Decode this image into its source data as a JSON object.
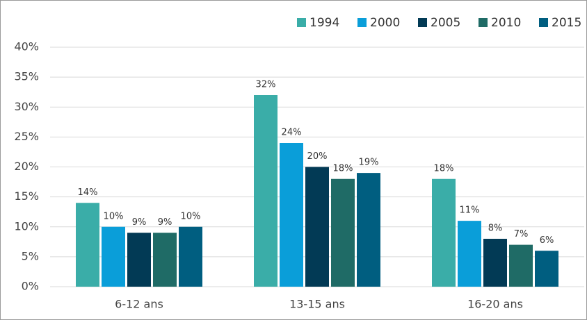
{
  "chart_data": {
    "type": "bar",
    "categories": [
      "6-12 ans",
      "13-15 ans",
      "16-20 ans"
    ],
    "series": [
      {
        "name": "1994",
        "color": "#3aada8",
        "values": [
          14,
          32,
          18
        ],
        "value_labels": [
          "14%",
          "32%",
          "18%"
        ]
      },
      {
        "name": "2000",
        "color": "#0a9ed9",
        "values": [
          10,
          24,
          11
        ],
        "value_labels": [
          "10%",
          "24%",
          "11%"
        ]
      },
      {
        "name": "2005",
        "color": "#023a55",
        "values": [
          9,
          20,
          8
        ],
        "value_labels": [
          "9%",
          "20%",
          "8%"
        ]
      },
      {
        "name": "2010",
        "color": "#1f6b66",
        "values": [
          9,
          18,
          7
        ],
        "value_labels": [
          "9%",
          "18%",
          "7%"
        ]
      },
      {
        "name": "2015",
        "color": "#005e80",
        "values": [
          10,
          19,
          6
        ],
        "value_labels": [
          "10%",
          "19%",
          "6%"
        ]
      }
    ],
    "ylim": [
      0,
      40
    ],
    "yticks": [
      {
        "value": 0,
        "label": "0%"
      },
      {
        "value": 5,
        "label": "5%"
      },
      {
        "value": 10,
        "label": "10%"
      },
      {
        "value": 15,
        "label": "15%"
      },
      {
        "value": 20,
        "label": "20%"
      },
      {
        "value": 25,
        "label": "25%"
      },
      {
        "value": 30,
        "label": "30%"
      },
      {
        "value": 35,
        "label": "35%"
      },
      {
        "value": 40,
        "label": "40%"
      }
    ],
    "grid": true,
    "legend": "top-right"
  }
}
